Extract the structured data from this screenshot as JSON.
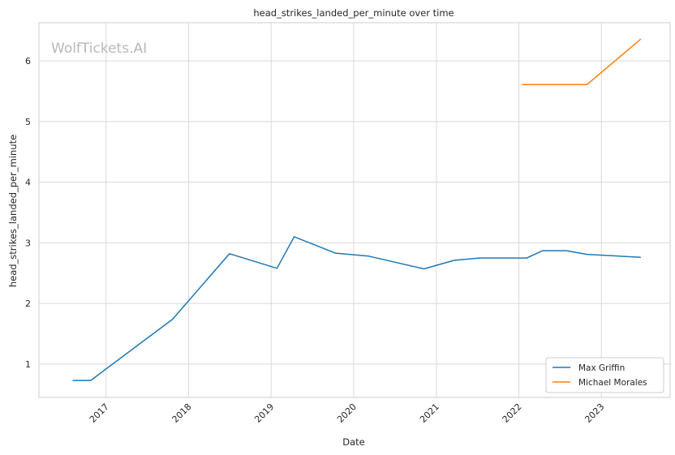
{
  "watermark": "WolfTickets.AI",
  "chart_data": {
    "type": "line",
    "title": "head_strikes_landed_per_minute over time",
    "xlabel": "Date",
    "ylabel": "head_strikes_landed_per_minute",
    "x_ticks": [
      "2017",
      "2018",
      "2019",
      "2020",
      "2021",
      "2022",
      "2023"
    ],
    "y_ticks": [
      "1",
      "2",
      "3",
      "4",
      "5",
      "6"
    ],
    "xlim": [
      "2016-03-10",
      "2023-11-01"
    ],
    "ylim": [
      0.45,
      6.63
    ],
    "grid": true,
    "legend_position": "bottom-right",
    "series": [
      {
        "name": "Max Griffin",
        "color": "#1f77b4",
        "points": [
          {
            "x": "2016-08-06",
            "y": 0.73
          },
          {
            "x": "2016-10-25",
            "y": 0.73
          },
          {
            "x": "2017-10-22",
            "y": 1.74
          },
          {
            "x": "2018-07-01",
            "y": 2.82
          },
          {
            "x": "2019-01-27",
            "y": 2.58
          },
          {
            "x": "2019-04-13",
            "y": 3.1
          },
          {
            "x": "2019-10-12",
            "y": 2.83
          },
          {
            "x": "2020-03-07",
            "y": 2.78
          },
          {
            "x": "2020-11-07",
            "y": 2.57
          },
          {
            "x": "2021-03-20",
            "y": 2.71
          },
          {
            "x": "2021-07-10",
            "y": 2.75
          },
          {
            "x": "2022-02-05",
            "y": 2.75
          },
          {
            "x": "2022-04-16",
            "y": 2.87
          },
          {
            "x": "2022-07-30",
            "y": 2.87
          },
          {
            "x": "2022-10-29",
            "y": 2.81
          },
          {
            "x": "2023-06-24",
            "y": 2.76
          }
        ]
      },
      {
        "name": "Michael Morales",
        "color": "#ff7f0e",
        "points": [
          {
            "x": "2022-01-15",
            "y": 5.61
          },
          {
            "x": "2022-10-29",
            "y": 5.61
          },
          {
            "x": "2023-06-24",
            "y": 6.36
          }
        ]
      }
    ]
  }
}
